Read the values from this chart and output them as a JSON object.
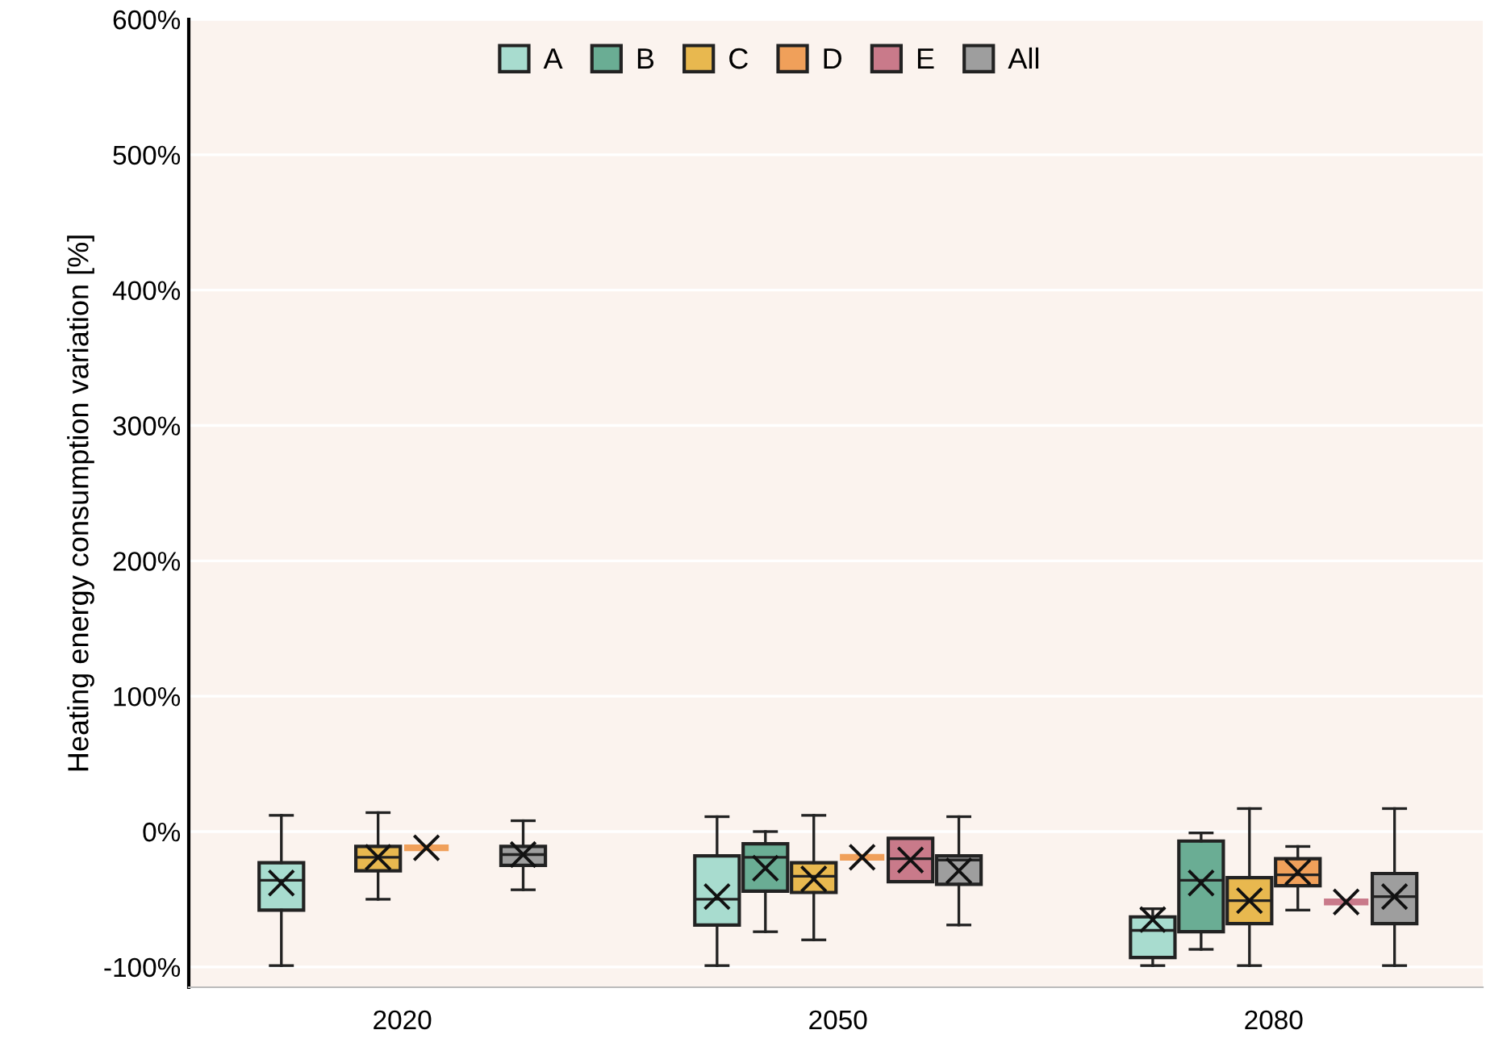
{
  "chart_data": {
    "type": "box",
    "ylabel": "Heating energy consumption variation [%]",
    "categories": [
      "2020",
      "2050",
      "2080"
    ],
    "ylim": [
      -115,
      600
    ],
    "yticks": [
      {
        "value": -100,
        "label": "-100%"
      },
      {
        "value": 0,
        "label": "0%"
      },
      {
        "value": 100,
        "label": "100%"
      },
      {
        "value": 200,
        "label": "200%"
      },
      {
        "value": 300,
        "label": "300%"
      },
      {
        "value": 400,
        "label": "400%"
      },
      {
        "value": 500,
        "label": "500%"
      },
      {
        "value": 600,
        "label": "600%"
      }
    ],
    "grid": "y",
    "legend": "top",
    "marker": "cross",
    "series": [
      {
        "name": "A",
        "color": "#a8dccf",
        "boxes": [
          {
            "low": -99,
            "q1": -58,
            "median": -36,
            "q3": -23,
            "high": 12,
            "mean": -38
          },
          {
            "low": -99,
            "q1": -69,
            "median": -50,
            "q3": -18,
            "high": 11,
            "mean": -48
          },
          {
            "low": -99,
            "q1": -93,
            "median": -73,
            "q3": -63,
            "high": -57,
            "mean": -65
          }
        ]
      },
      {
        "name": "B",
        "color": "#6aad94",
        "boxes": [
          null,
          {
            "low": -74,
            "q1": -44,
            "median": -19,
            "q3": -9,
            "high": 0,
            "mean": -27
          },
          {
            "low": -87,
            "q1": -74,
            "median": -36,
            "q3": -7,
            "high": -1,
            "mean": -38
          }
        ]
      },
      {
        "name": "C",
        "color": "#e8b84f",
        "boxes": [
          {
            "low": -50,
            "q1": -29,
            "median": -19,
            "q3": -11,
            "high": 14,
            "mean": -19
          },
          {
            "low": -80,
            "q1": -45,
            "median": -33,
            "q3": -23,
            "high": 12,
            "mean": -35
          },
          {
            "low": -99,
            "q1": -68,
            "median": -51,
            "q3": -34,
            "high": 17,
            "mean": -51
          }
        ]
      },
      {
        "name": "D",
        "color": "#f0a05a",
        "boxes": [
          {
            "low": -12,
            "q1": -12,
            "median": -12,
            "q3": -12,
            "high": -12,
            "mean": -12
          },
          {
            "low": -19,
            "q1": -19,
            "median": -19,
            "q3": -19,
            "high": -19,
            "mean": -19
          },
          {
            "low": -58,
            "q1": -40,
            "median": -32,
            "q3": -20,
            "high": -11,
            "mean": -30
          }
        ]
      },
      {
        "name": "E",
        "color": "#c97a8a",
        "boxes": [
          null,
          {
            "low": -37,
            "q1": -37,
            "median": -20,
            "q3": -5,
            "high": -5,
            "mean": -21
          },
          {
            "low": -52,
            "q1": -52,
            "median": -52,
            "q3": -52,
            "high": -52,
            "mean": -52
          }
        ]
      },
      {
        "name": "All",
        "color": "#9e9e9e",
        "boxes": [
          {
            "low": -43,
            "q1": -25,
            "median": -17,
            "q3": -11,
            "high": 8,
            "mean": -17
          },
          {
            "low": -69,
            "q1": -39,
            "median": -21,
            "q3": -18,
            "high": 11,
            "mean": -29
          },
          {
            "low": -99,
            "q1": -68,
            "median": -48,
            "q3": -31,
            "high": 17,
            "mean": -48
          }
        ]
      }
    ]
  }
}
